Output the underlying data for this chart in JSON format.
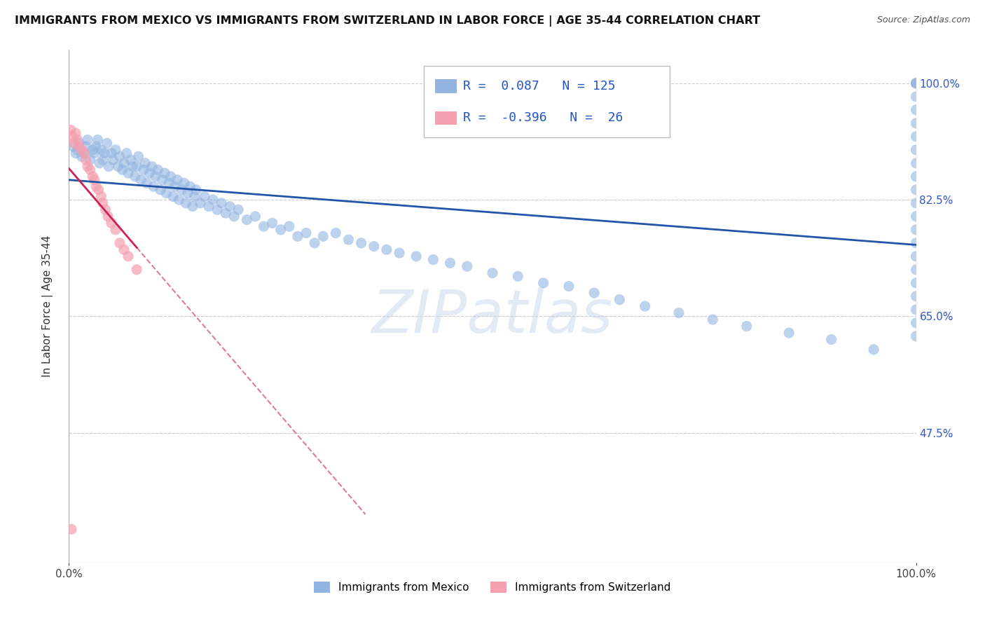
{
  "title": "IMMIGRANTS FROM MEXICO VS IMMIGRANTS FROM SWITZERLAND IN LABOR FORCE | AGE 35-44 CORRELATION CHART",
  "source": "Source: ZipAtlas.com",
  "ylabel": "In Labor Force | Age 35-44",
  "xlim": [
    0.0,
    1.0
  ],
  "ylim": [
    0.28,
    1.05
  ],
  "yticks": [
    0.475,
    0.65,
    0.825,
    1.0
  ],
  "ytick_labels": [
    "47.5%",
    "65.0%",
    "82.5%",
    "100.0%"
  ],
  "legend_mexico": "Immigrants from Mexico",
  "legend_switzerland": "Immigrants from Switzerland",
  "R_mexico": 0.087,
  "N_mexico": 125,
  "R_switzerland": -0.396,
  "N_switzerland": 26,
  "blue_color": "#92b4e0",
  "blue_line_color": "#2255AA",
  "pink_color": "#f4a0b0",
  "pink_line_color": "#CC2255",
  "background_color": "#FFFFFF",
  "grid_color": "#CCCCCC",
  "watermark": "ZIPatlas",
  "mexico_x": [
    0.005,
    0.008,
    0.01,
    0.012,
    0.015,
    0.018,
    0.02,
    0.022,
    0.025,
    0.028,
    0.03,
    0.032,
    0.034,
    0.036,
    0.038,
    0.04,
    0.042,
    0.045,
    0.047,
    0.05,
    0.052,
    0.055,
    0.058,
    0.06,
    0.063,
    0.065,
    0.068,
    0.07,
    0.073,
    0.075,
    0.078,
    0.08,
    0.082,
    0.085,
    0.088,
    0.09,
    0.092,
    0.095,
    0.098,
    0.1,
    0.102,
    0.105,
    0.108,
    0.11,
    0.113,
    0.115,
    0.118,
    0.12,
    0.123,
    0.125,
    0.128,
    0.13,
    0.133,
    0.136,
    0.138,
    0.14,
    0.143,
    0.146,
    0.148,
    0.15,
    0.155,
    0.16,
    0.165,
    0.17,
    0.175,
    0.18,
    0.185,
    0.19,
    0.195,
    0.2,
    0.21,
    0.22,
    0.23,
    0.24,
    0.25,
    0.26,
    0.27,
    0.28,
    0.29,
    0.3,
    0.315,
    0.33,
    0.345,
    0.36,
    0.375,
    0.39,
    0.41,
    0.43,
    0.45,
    0.47,
    0.5,
    0.53,
    0.56,
    0.59,
    0.62,
    0.65,
    0.68,
    0.72,
    0.76,
    0.8,
    0.85,
    0.9,
    0.95,
    1.0,
    1.0,
    1.0,
    1.0,
    1.0,
    1.0,
    1.0,
    1.0,
    1.0,
    1.0,
    1.0,
    1.0,
    1.0,
    1.0,
    1.0,
    1.0,
    1.0,
    1.0,
    1.0,
    1.0,
    1.0,
    1.0
  ],
  "mexico_y": [
    0.905,
    0.895,
    0.9,
    0.91,
    0.89,
    0.895,
    0.905,
    0.915,
    0.885,
    0.9,
    0.895,
    0.905,
    0.915,
    0.88,
    0.9,
    0.885,
    0.895,
    0.91,
    0.875,
    0.895,
    0.885,
    0.9,
    0.875,
    0.89,
    0.87,
    0.88,
    0.895,
    0.865,
    0.885,
    0.875,
    0.86,
    0.875,
    0.89,
    0.855,
    0.87,
    0.88,
    0.85,
    0.865,
    0.875,
    0.845,
    0.86,
    0.87,
    0.84,
    0.855,
    0.865,
    0.835,
    0.85,
    0.86,
    0.83,
    0.845,
    0.855,
    0.825,
    0.84,
    0.85,
    0.82,
    0.835,
    0.845,
    0.815,
    0.83,
    0.84,
    0.82,
    0.83,
    0.815,
    0.825,
    0.81,
    0.82,
    0.805,
    0.815,
    0.8,
    0.81,
    0.795,
    0.8,
    0.785,
    0.79,
    0.78,
    0.785,
    0.77,
    0.775,
    0.76,
    0.77,
    0.775,
    0.765,
    0.76,
    0.755,
    0.75,
    0.745,
    0.74,
    0.735,
    0.73,
    0.725,
    0.715,
    0.71,
    0.7,
    0.695,
    0.685,
    0.675,
    0.665,
    0.655,
    0.645,
    0.635,
    0.625,
    0.615,
    0.6,
    1.0,
    1.0,
    1.0,
    0.98,
    0.96,
    0.94,
    0.92,
    0.9,
    0.88,
    0.86,
    0.84,
    0.82,
    0.8,
    0.78,
    0.76,
    0.74,
    0.72,
    0.7,
    0.68,
    0.66,
    0.64,
    0.62
  ],
  "switzerland_x": [
    0.002,
    0.004,
    0.006,
    0.008,
    0.01,
    0.012,
    0.015,
    0.018,
    0.02,
    0.022,
    0.025,
    0.028,
    0.03,
    0.032,
    0.035,
    0.038,
    0.04,
    0.043,
    0.046,
    0.05,
    0.055,
    0.06,
    0.065,
    0.07,
    0.08,
    0.003
  ],
  "switzerland_y": [
    0.93,
    0.92,
    0.91,
    0.925,
    0.915,
    0.905,
    0.9,
    0.895,
    0.885,
    0.875,
    0.87,
    0.86,
    0.855,
    0.845,
    0.84,
    0.83,
    0.82,
    0.81,
    0.8,
    0.79,
    0.78,
    0.76,
    0.75,
    0.74,
    0.72,
    0.33
  ]
}
